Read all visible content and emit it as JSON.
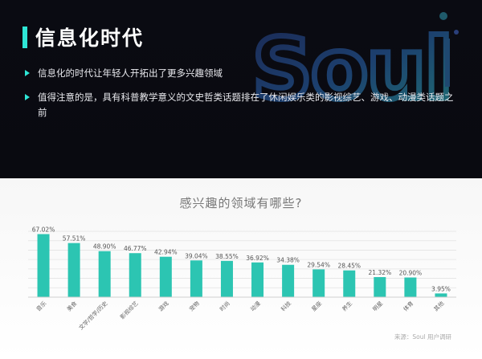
{
  "header": {
    "title": "信息化时代",
    "bullets": [
      "信息化的时代让年轻人开拓出了更多兴趣领域",
      "值得注意的是，具有科普教学意义的文史哲类话题排在了休闲娱乐类的影视综艺、游戏、动漫类话题之前"
    ],
    "accent_color": "#2ee6d6",
    "logo_text": "Soul"
  },
  "chart_data": {
    "type": "bar",
    "title": "感兴趣的领域有哪些?",
    "categories": [
      "音乐",
      "美食",
      "文学/哲学/历史",
      "影视综艺",
      "游戏",
      "宠物",
      "时尚",
      "动漫",
      "科技",
      "星座",
      "养生",
      "明星",
      "体育",
      "其他"
    ],
    "values": [
      67.02,
      57.51,
      48.9,
      46.77,
      42.94,
      39.04,
      38.55,
      36.92,
      34.38,
      29.54,
      28.45,
      21.32,
      20.9,
      3.95
    ],
    "value_labels": [
      "67.02%",
      "57.51%",
      "48.90%",
      "46.77%",
      "42.94%",
      "39.04%",
      "38.55%",
      "36.92%",
      "34.38%",
      "29.54%",
      "28.45%",
      "21.32%",
      "20.90%",
      "3.95%"
    ],
    "ylim": [
      0,
      70
    ],
    "bar_color": "#2cc5b2",
    "grid": true
  },
  "footer": {
    "source": "来源：Soul 用户调研"
  }
}
